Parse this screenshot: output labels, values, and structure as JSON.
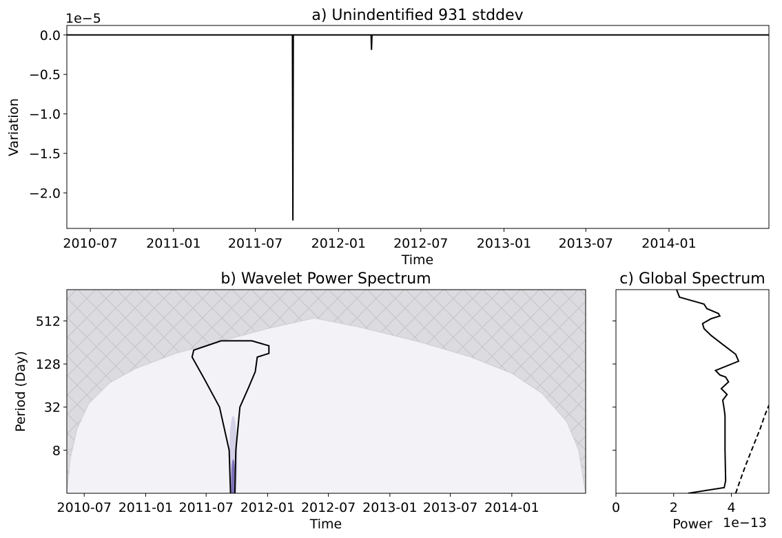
{
  "chart_data": [
    {
      "id": "a",
      "type": "line",
      "title": "a) Unindentified 931 stddev",
      "xlabel": "Time",
      "ylabel": "Variation",
      "offset_text": "1e−5",
      "xlim": [
        "2010-05-10",
        "2014-08-10"
      ],
      "ylim": [
        -2.45,
        0.12
      ],
      "x_ticks": [
        "2010-07",
        "2011-01",
        "2011-07",
        "2012-01",
        "2012-07",
        "2013-01",
        "2013-07",
        "2014-01"
      ],
      "y_ticks": [
        0.0,
        -0.5,
        -1.0,
        -1.5,
        -2.0
      ],
      "y_tick_labels": [
        "0.0",
        "−0.5",
        "−1.0",
        "−1.5",
        "−2.0"
      ],
      "series": [
        {
          "color": "#000000",
          "points": [
            [
              "2010-05-10",
              0.0
            ],
            [
              "2011-09-21",
              0.0
            ],
            [
              "2011-09-22",
              -2.35
            ],
            [
              "2011-09-23",
              0.0
            ],
            [
              "2012-03-13",
              0.0
            ],
            [
              "2012-03-14",
              -0.19
            ],
            [
              "2012-03-15",
              0.0
            ],
            [
              "2014-08-10",
              0.0
            ]
          ]
        }
      ]
    },
    {
      "id": "b",
      "type": "heatmap",
      "title": "b) Wavelet Power Spectrum",
      "xlabel": "Time",
      "ylabel": "Period (Day)",
      "xlim": [
        "2010-05-10",
        "2014-08-10"
      ],
      "y_scale": "log2",
      "ylim": [
        2,
        1400
      ],
      "x_ticks": [
        "2010-07",
        "2011-01",
        "2011-07",
        "2012-01",
        "2012-07",
        "2013-01",
        "2013-07",
        "2014-01"
      ],
      "y_ticks": [
        8,
        32,
        128,
        512
      ],
      "y_tick_labels": [
        "8",
        "32",
        "128",
        "512"
      ],
      "cone_of_influence": [
        [
          "2010-05-10",
          2
        ],
        [
          "2010-05-20",
          6
        ],
        [
          "2010-06-10",
          16
        ],
        [
          "2010-07-15",
          36
        ],
        [
          "2010-09-15",
          70
        ],
        [
          "2010-12-01",
          110
        ],
        [
          "2011-04-01",
          180
        ],
        [
          "2011-09-01",
          280
        ],
        [
          "2012-01-01",
          400
        ],
        [
          "2012-05-20",
          560
        ],
        [
          "2012-10-01",
          420
        ],
        [
          "2013-04-01",
          260
        ],
        [
          "2013-09-01",
          160
        ],
        [
          "2014-01-01",
          95
        ],
        [
          "2014-04-01",
          50
        ],
        [
          "2014-06-15",
          20
        ],
        [
          "2014-07-20",
          8
        ],
        [
          "2014-08-10",
          2
        ]
      ],
      "significance_contour": [
        [
          "2011-09-12",
          2
        ],
        [
          "2011-09-08",
          8
        ],
        [
          "2011-08-10",
          32
        ],
        [
          "2011-06-25",
          80
        ],
        [
          "2011-05-20",
          160
        ],
        [
          "2011-05-25",
          200
        ],
        [
          "2011-08-15",
          270
        ],
        [
          "2011-11-15",
          270
        ],
        [
          "2012-01-05",
          230
        ],
        [
          "2012-01-05",
          180
        ],
        [
          "2011-12-01",
          160
        ],
        [
          "2011-11-25",
          100
        ],
        [
          "2011-11-05",
          60
        ],
        [
          "2011-10-10",
          32
        ],
        [
          "2011-09-28",
          8
        ],
        [
          "2011-09-25",
          2
        ]
      ],
      "power_blobs": [
        {
          "x": "2011-09-20",
          "period_low": 2,
          "period_high": 24,
          "color": "#c8c6e2"
        },
        {
          "x": "2011-09-20",
          "period_low": 2,
          "period_high": 6,
          "color": "#6f5fb0"
        }
      ],
      "colors": {
        "background": "#f2f2f7",
        "coi_fill": "#dcdbe0",
        "hatch": "#c4c3c8"
      }
    },
    {
      "id": "c",
      "type": "line",
      "title": "c) Global Spectrum",
      "xlabel": "Power",
      "offset_text": "1e−13",
      "xlim": [
        0,
        5.3
      ],
      "x_ticks": [
        0,
        2,
        4
      ],
      "x_tick_labels": [
        "0",
        "2",
        "4"
      ],
      "y_scale": "log2",
      "ylim": [
        2,
        1400
      ],
      "y_ticks": [
        8,
        32,
        128,
        512
      ],
      "series": [
        {
          "style": "solid",
          "color": "#000000",
          "points": [
            [
              2.5,
              2
            ],
            [
              3.75,
              2.4
            ],
            [
              3.8,
              3
            ],
            [
              3.78,
              8
            ],
            [
              3.78,
              24
            ],
            [
              3.75,
              30
            ],
            [
              3.7,
              40
            ],
            [
              3.85,
              48
            ],
            [
              3.65,
              58
            ],
            [
              3.9,
              72
            ],
            [
              3.8,
              84
            ],
            [
              3.6,
              90
            ],
            [
              3.45,
              104
            ],
            [
              4.25,
              140
            ],
            [
              4.15,
              175
            ],
            [
              3.7,
              240
            ],
            [
              3.3,
              320
            ],
            [
              3.05,
              400
            ],
            [
              3.0,
              470
            ],
            [
              3.3,
              550
            ],
            [
              3.6,
              600
            ],
            [
              3.55,
              650
            ],
            [
              3.15,
              760
            ],
            [
              3.05,
              880
            ],
            [
              2.2,
              1100
            ],
            [
              2.1,
              1400
            ]
          ]
        },
        {
          "style": "dashed",
          "color": "#000000",
          "points": [
            [
              4.15,
              2
            ],
            [
              4.3,
              3
            ],
            [
              4.5,
              5
            ],
            [
              4.75,
              9
            ],
            [
              5.0,
              16
            ],
            [
              5.15,
              24
            ],
            [
              5.3,
              34
            ]
          ]
        }
      ]
    }
  ]
}
